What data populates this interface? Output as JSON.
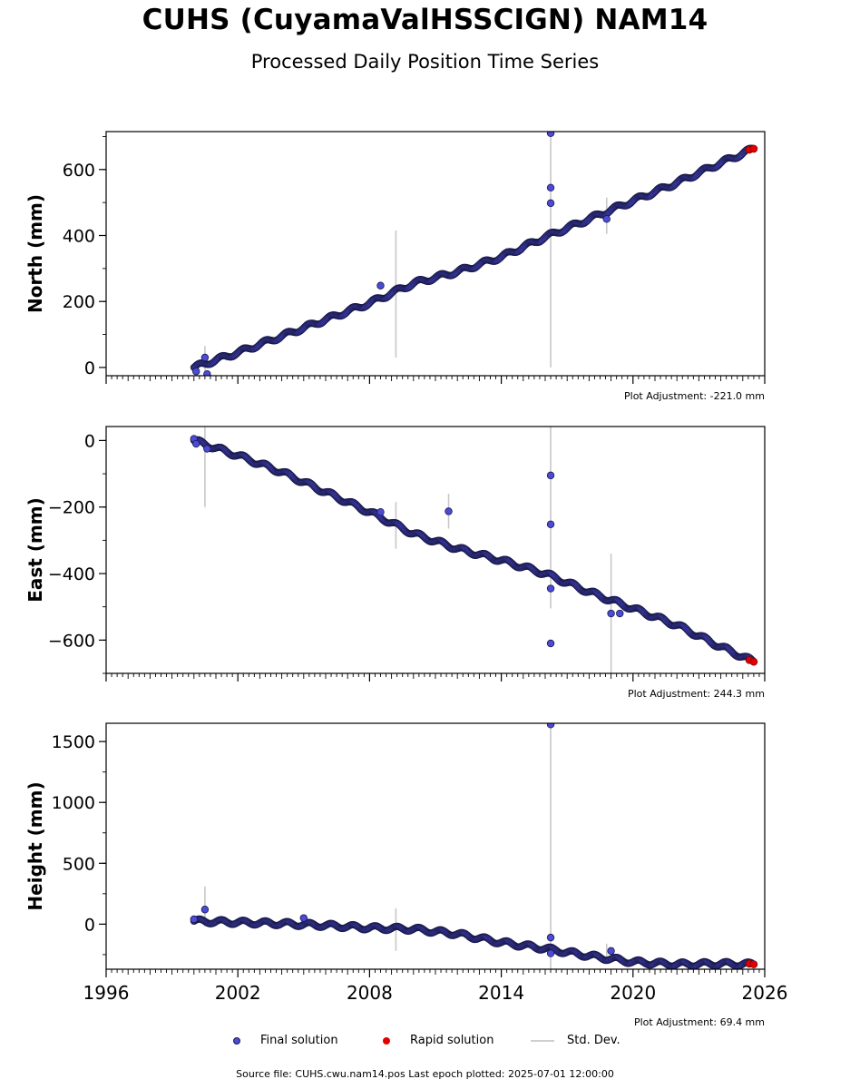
{
  "title": "CUHS (CuyamaValHSSCIGN) NAM14",
  "subtitle": "Processed Daily Position Time Series",
  "colors": {
    "final": "#4b4bd8",
    "final_edge": "#1a1a4a",
    "rapid": "#e00000",
    "stddev": "#c8c8c8"
  },
  "legend": {
    "final": "Final solution",
    "rapid": "Rapid solution",
    "stddev": "Std. Dev."
  },
  "source_text": "Source file: CUHS.cwu.nam14.pos  Last epoch plotted: 2025-07-01 12:00:00",
  "chart_data": [
    {
      "type": "scatter",
      "ylabel": "North (mm)",
      "adjustment": "Plot Adjustment: -221.0 mm",
      "xlim": [
        1996,
        2026
      ],
      "ylim": [
        -25,
        715
      ],
      "yticks": [
        0,
        200,
        400,
        600
      ],
      "yticklabels": [
        "0",
        "200",
        "400",
        "600"
      ],
      "trend": [
        [
          2000.0,
          0
        ],
        [
          2002,
          45
        ],
        [
          2004,
          95
        ],
        [
          2006,
          145
        ],
        [
          2008,
          195
        ],
        [
          2010,
          255
        ],
        [
          2012,
          290
        ],
        [
          2014,
          335
        ],
        [
          2016,
          395
        ],
        [
          2018,
          450
        ],
        [
          2020,
          505
        ],
        [
          2022,
          560
        ],
        [
          2024,
          620
        ],
        [
          2025.5,
          663
        ]
      ],
      "outliers": [
        [
          2000.1,
          -12
        ],
        [
          2000.5,
          30
        ],
        [
          2000.6,
          -20
        ],
        [
          2008.5,
          248
        ],
        [
          2016.25,
          710
        ],
        [
          2016.25,
          545
        ],
        [
          2016.25,
          498
        ],
        [
          2018.8,
          450
        ]
      ],
      "stddev": [
        [
          2000.5,
          -10,
          65
        ],
        [
          2009.2,
          30,
          415
        ],
        [
          2016.25,
          0,
          715
        ],
        [
          2018.8,
          405,
          515
        ]
      ],
      "rapid": [
        [
          2025.3,
          660
        ],
        [
          2025.5,
          663
        ]
      ]
    },
    {
      "type": "scatter",
      "ylabel": "East (mm)",
      "adjustment": "Plot Adjustment: 244.3 mm",
      "xlim": [
        1996,
        2026
      ],
      "ylim": [
        -700,
        42
      ],
      "yticks": [
        0,
        -200,
        -400,
        -600
      ],
      "yticklabels": [
        "0",
        "−200",
        "−400",
        "−600"
      ],
      "trend": [
        [
          2000.0,
          0
        ],
        [
          2002,
          -45
        ],
        [
          2004,
          -95
        ],
        [
          2006,
          -155
        ],
        [
          2008,
          -215
        ],
        [
          2010,
          -280
        ],
        [
          2012,
          -325
        ],
        [
          2014,
          -360
        ],
        [
          2016,
          -400
        ],
        [
          2018,
          -455
        ],
        [
          2020,
          -505
        ],
        [
          2022,
          -555
        ],
        [
          2024,
          -620
        ],
        [
          2025.5,
          -665
        ]
      ],
      "outliers": [
        [
          2000.0,
          5
        ],
        [
          2000.1,
          -10
        ],
        [
          2000.6,
          -25
        ],
        [
          2008.5,
          -215
        ],
        [
          2011.6,
          -213
        ],
        [
          2016.25,
          -105
        ],
        [
          2016.25,
          -252
        ],
        [
          2016.25,
          -445
        ],
        [
          2016.25,
          -610
        ],
        [
          2019.0,
          -520
        ],
        [
          2019.4,
          -520
        ]
      ],
      "stddev": [
        [
          2000.5,
          -200,
          40
        ],
        [
          2009.2,
          -325,
          -185
        ],
        [
          2011.6,
          -265,
          -160
        ],
        [
          2016.25,
          -505,
          42
        ],
        [
          2019.0,
          -700,
          -340
        ]
      ],
      "rapid": [
        [
          2025.3,
          -660
        ],
        [
          2025.5,
          -665
        ]
      ]
    },
    {
      "type": "scatter",
      "ylabel": "Height (mm)",
      "adjustment": "Plot Adjustment: 69.4 mm",
      "xlim": [
        1996,
        2026
      ],
      "ylim": [
        -370,
        1650
      ],
      "yticks": [
        0,
        500,
        1000,
        1500
      ],
      "yticklabels": [
        "0",
        "500",
        "1000",
        "1500"
      ],
      "xticks": [
        1996,
        2002,
        2008,
        2014,
        2020,
        2026
      ],
      "xticklabels": [
        "1996",
        "2002",
        "2008",
        "2014",
        "2020",
        "2026"
      ],
      "trend": [
        [
          2000.0,
          25
        ],
        [
          2002,
          15
        ],
        [
          2004,
          5
        ],
        [
          2006,
          -10
        ],
        [
          2008,
          -30
        ],
        [
          2010,
          -40
        ],
        [
          2012,
          -80
        ],
        [
          2014,
          -150
        ],
        [
          2016,
          -200
        ],
        [
          2018,
          -260
        ],
        [
          2020,
          -310
        ],
        [
          2022,
          -330
        ],
        [
          2024,
          -325
        ],
        [
          2025.5,
          -330
        ]
      ],
      "outliers": [
        [
          2000.0,
          40
        ],
        [
          2000.5,
          120
        ],
        [
          2005.0,
          50
        ],
        [
          2016.25,
          1640
        ],
        [
          2016.25,
          -110
        ],
        [
          2016.25,
          -240
        ],
        [
          2019.0,
          -220
        ]
      ],
      "stddev": [
        [
          2000.5,
          -20,
          310
        ],
        [
          2009.2,
          -220,
          130
        ],
        [
          2016.25,
          -370,
          1650
        ],
        [
          2018.8,
          -300,
          -160
        ]
      ],
      "rapid": [
        [
          2025.3,
          -325
        ],
        [
          2025.5,
          -330
        ]
      ]
    }
  ]
}
